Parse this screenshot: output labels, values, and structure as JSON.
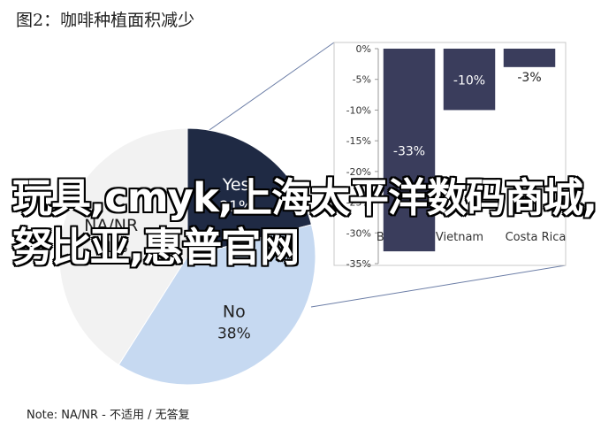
{
  "header": {
    "title": "图2：咖啡种植面积减少"
  },
  "chart_data": [
    {
      "type": "pie",
      "slices": [
        {
          "label": "Yes",
          "value_label": "21%",
          "value": 21,
          "color": "#1f2a44"
        },
        {
          "label": "No",
          "value_label": "38%",
          "value": 38,
          "color": "#c6d9f1"
        },
        {
          "label": "NA/NR",
          "value_label": "41%",
          "value": 41,
          "color": "#f2f2f2"
        }
      ]
    },
    {
      "type": "bar",
      "categories": [
        "Brazil",
        "Vietnam",
        "Costa Rica"
      ],
      "values": [
        -33,
        -10,
        -3
      ],
      "value_labels": [
        "-33%",
        "-10%",
        "-3%"
      ],
      "ylim": [
        -35,
        0
      ],
      "yticks": [
        "0%",
        "-5%",
        "-10%",
        "-15%",
        "-20%",
        "-25%",
        "-30%",
        "-35%"
      ],
      "bar_color": "#3a3d5c"
    }
  ],
  "note": "Note: NA/NR - 不适用 / 无答复",
  "watermark": "玩具,cmyk,上海太平洋数码商城,努比亚,惠普官网"
}
